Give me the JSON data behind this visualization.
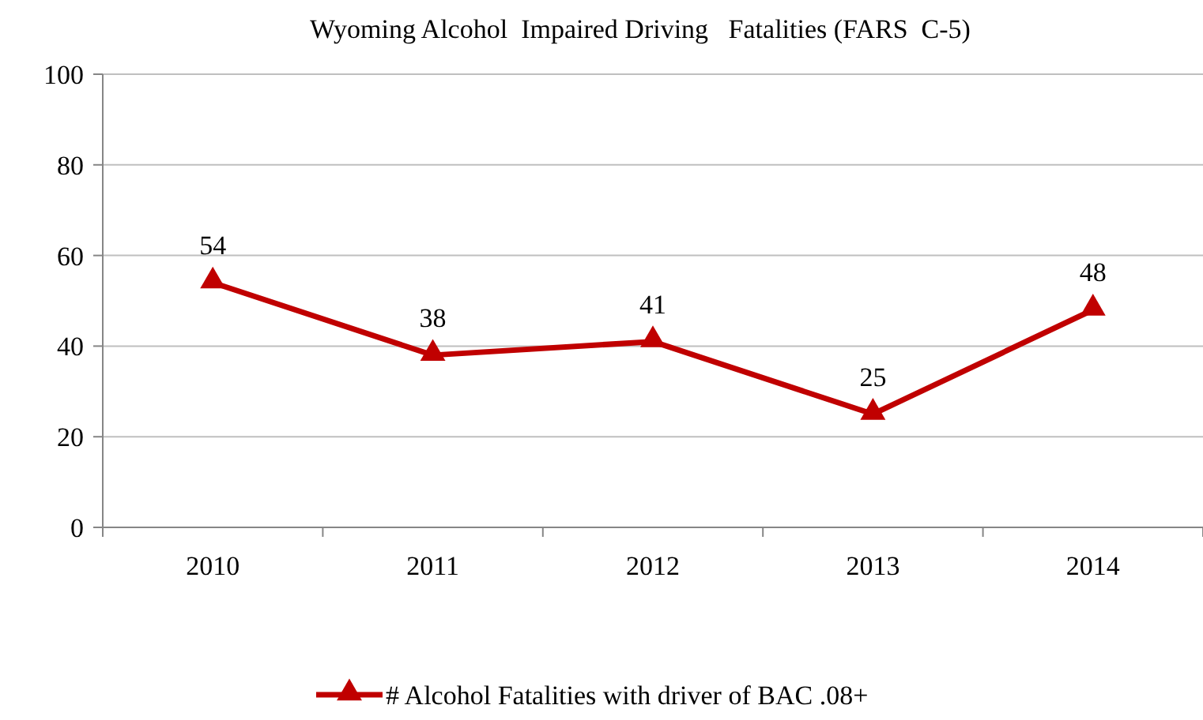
{
  "chart_data": {
    "type": "line",
    "title": "Wyoming Alcohol  Impaired Driving   Fatalities (FARS  C-5)",
    "categories": [
      "2010",
      "2011",
      "2012",
      "2013",
      "2014"
    ],
    "series": [
      {
        "name": "# Alcohol Fatalities with driver of BAC .08+",
        "color": "#c00000",
        "values": [
          54,
          38,
          41,
          25,
          48
        ]
      }
    ],
    "ylim": [
      0,
      100
    ],
    "yticks": [
      0,
      20,
      40,
      60,
      80,
      100
    ],
    "grid": "y",
    "legend": "bottom",
    "marker": "triangle",
    "line_style": "solid",
    "data_labels": true
  }
}
